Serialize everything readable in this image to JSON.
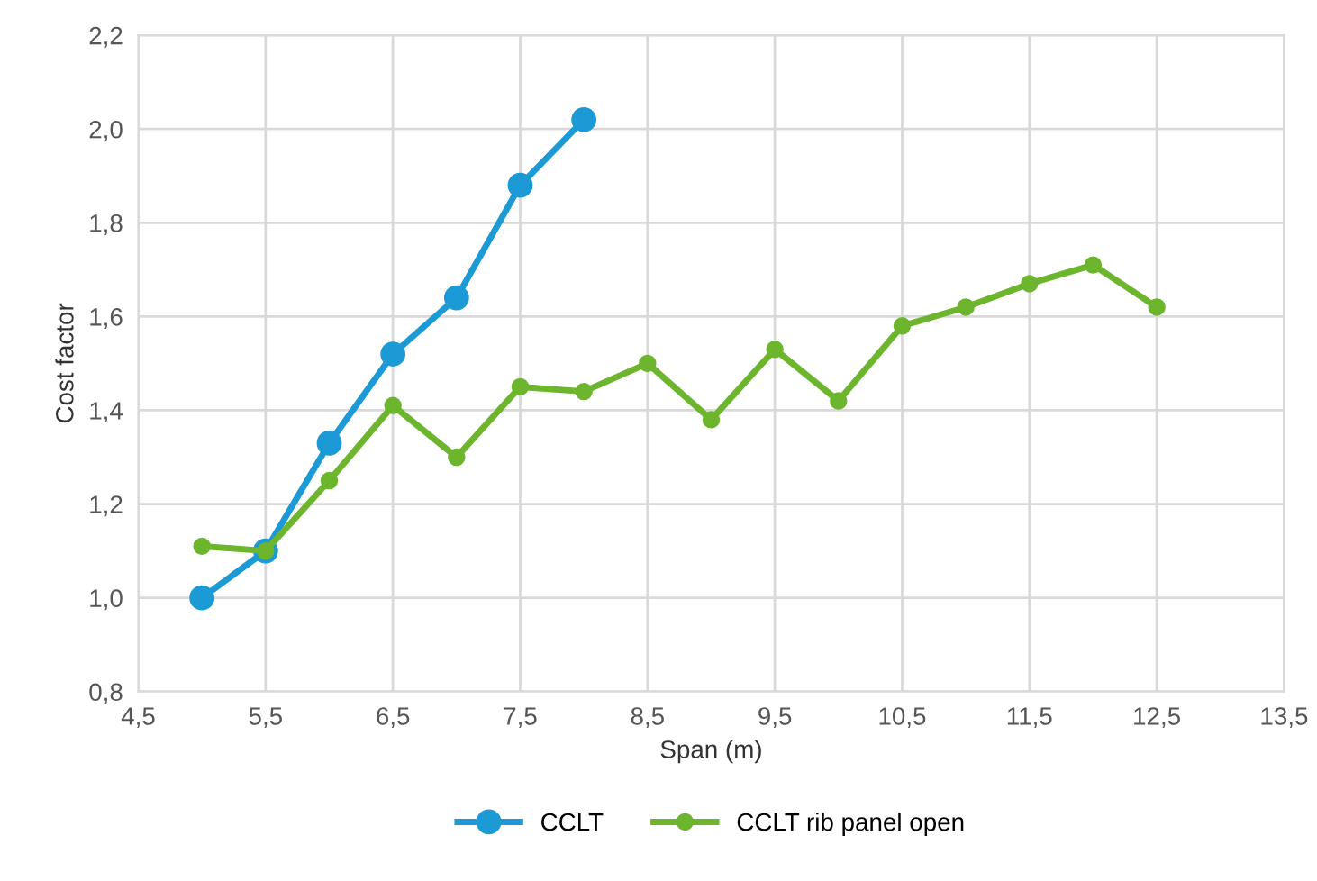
{
  "chart_data": {
    "type": "line",
    "xlabel": "Span (m)",
    "ylabel": "Cost factor",
    "xlim": [
      4.5,
      13.5
    ],
    "ylim": [
      0.8,
      2.2
    ],
    "xticks": [
      {
        "value": 4.5,
        "label": "4,5"
      },
      {
        "value": 5.5,
        "label": "5,5"
      },
      {
        "value": 6.5,
        "label": "6,5"
      },
      {
        "value": 7.5,
        "label": "7,5"
      },
      {
        "value": 8.5,
        "label": "8,5"
      },
      {
        "value": 9.5,
        "label": "9,5"
      },
      {
        "value": 10.5,
        "label": "10,5"
      },
      {
        "value": 11.5,
        "label": "11,5"
      },
      {
        "value": 12.5,
        "label": "12,5"
      },
      {
        "value": 13.5,
        "label": "13,5"
      }
    ],
    "yticks": [
      {
        "value": 0.8,
        "label": "0,8"
      },
      {
        "value": 1.0,
        "label": "1,0"
      },
      {
        "value": 1.2,
        "label": "1,2"
      },
      {
        "value": 1.4,
        "label": "1,4"
      },
      {
        "value": 1.6,
        "label": "1,6"
      },
      {
        "value": 1.8,
        "label": "1,8"
      },
      {
        "value": 2.0,
        "label": "2,0"
      },
      {
        "value": 2.2,
        "label": "2,2"
      }
    ],
    "grid": true,
    "legend": "bottom",
    "marker": "circle",
    "line_style": "solid",
    "series": [
      {
        "name": "CCLT",
        "color": "#1b9ad6",
        "x": [
          5,
          5.5,
          6,
          6.5,
          7,
          7.5,
          8
        ],
        "values": [
          1.0,
          1.1,
          1.33,
          1.52,
          1.64,
          1.88,
          2.02
        ]
      },
      {
        "name": "CCLT rib panel open",
        "color": "#6cb52d",
        "x": [
          5,
          5.5,
          6,
          6.5,
          7,
          7.5,
          8,
          8.5,
          9,
          9.5,
          10,
          10.5,
          11,
          11.5,
          12,
          12.5
        ],
        "values": [
          1.11,
          1.1,
          1.25,
          1.41,
          1.3,
          1.45,
          1.44,
          1.5,
          1.38,
          1.53,
          1.42,
          1.58,
          1.62,
          1.67,
          1.71,
          1.62
        ]
      }
    ]
  }
}
